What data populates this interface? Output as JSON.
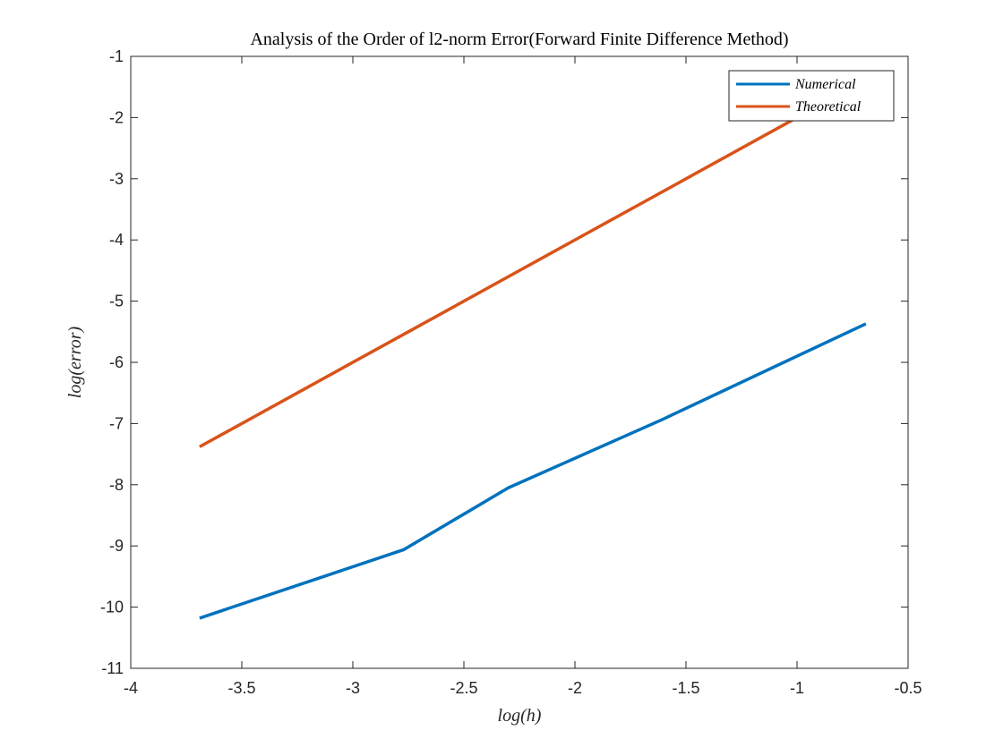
{
  "chart_data": {
    "type": "line",
    "title": "Analysis of the Order of l2-norm Error(Forward Finite Difference Method)",
    "xlabel": "log(h)",
    "ylabel": "log(error)",
    "xlim": [
      -4,
      -0.5
    ],
    "ylim": [
      -11,
      -1
    ],
    "xticks": [
      -4,
      -3.5,
      -3,
      -2.5,
      -2,
      -1.5,
      -1,
      -0.5
    ],
    "yticks": [
      -11,
      -10,
      -9,
      -8,
      -7,
      -6,
      -5,
      -4,
      -3,
      -2,
      -1
    ],
    "xtick_labels": [
      "-4",
      "-3.5",
      "-3",
      "-2.5",
      "-2",
      "-1.5",
      "-1",
      "-0.5"
    ],
    "ytick_labels": [
      "-11",
      "-10",
      "-9",
      "-8",
      "-7",
      "-6",
      "-5",
      "-4",
      "-3",
      "-2",
      "-1"
    ],
    "grid": false,
    "legend_position": "top-right",
    "series": [
      {
        "name": "Numerical",
        "color": "#0072BD",
        "x": [
          -3.69,
          -2.77,
          -2.3,
          -1.61,
          -0.69
        ],
        "y": [
          -10.18,
          -9.06,
          -8.05,
          -6.94,
          -5.37
        ]
      },
      {
        "name": "Theoretical",
        "color": "#D95319",
        "x": [
          -3.69,
          -2.77,
          -2.3,
          -1.61,
          -0.69
        ],
        "y": [
          -7.38,
          -5.54,
          -4.6,
          -3.22,
          -1.38
        ]
      }
    ]
  }
}
